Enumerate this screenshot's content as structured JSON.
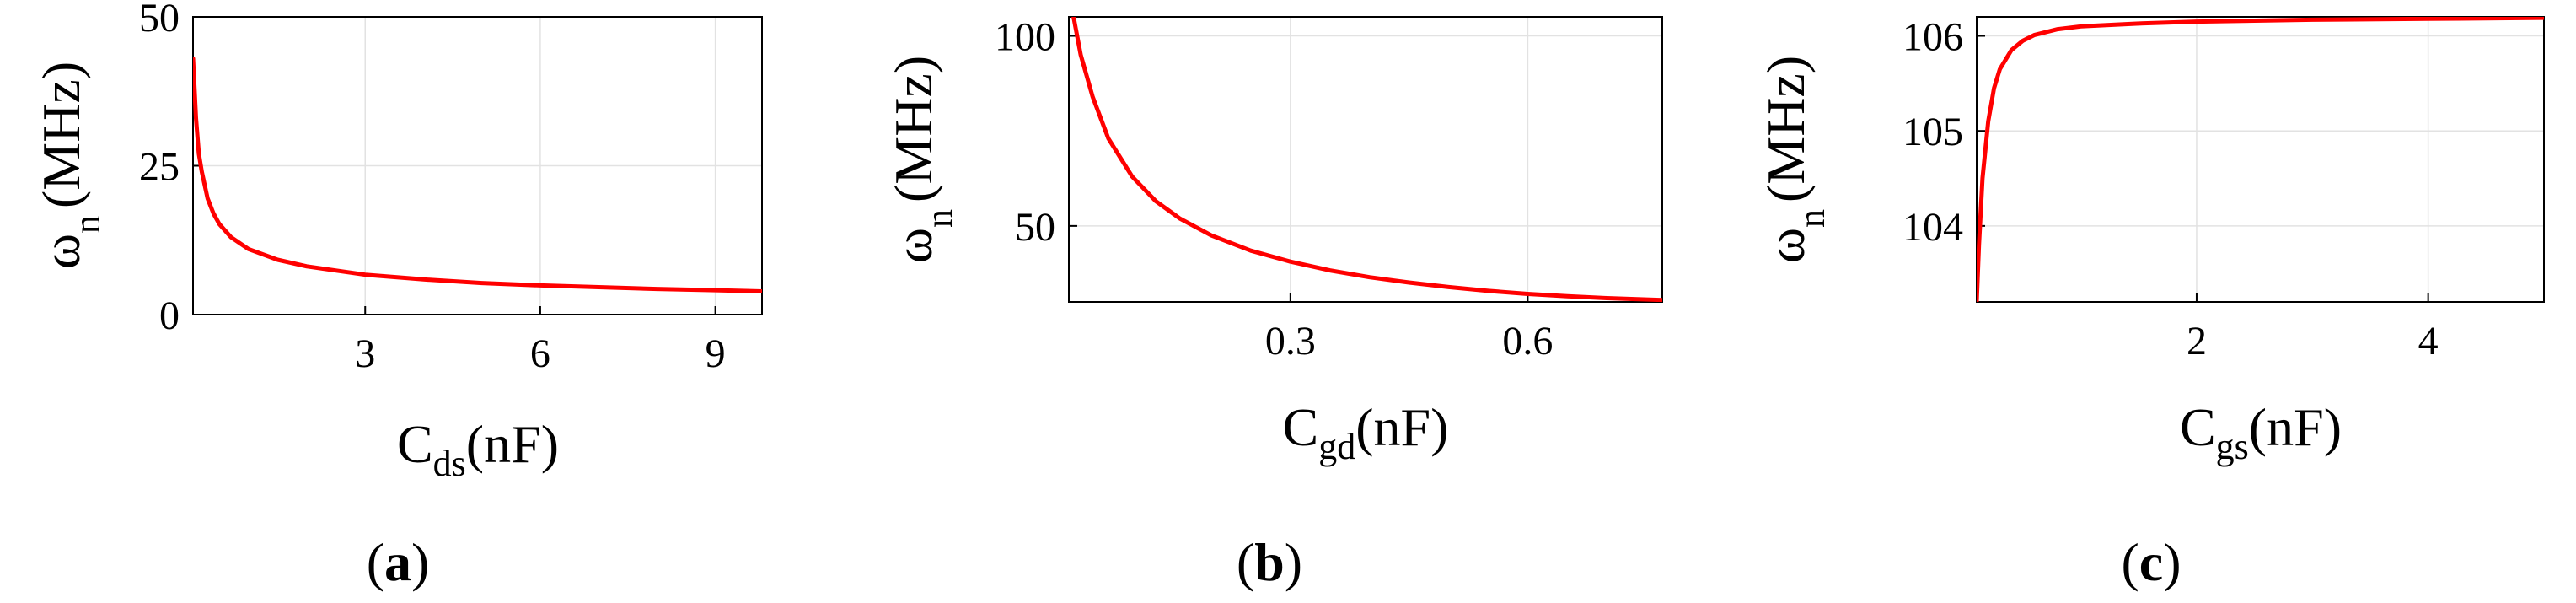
{
  "chart_data": [
    {
      "type": "line",
      "panel_label": {
        "open": "(",
        "letter": "a",
        "close": ")"
      },
      "xlabel": {
        "main": "C",
        "sub": "ds",
        "unit": "(nF)"
      },
      "ylabel": {
        "main": "ω",
        "sub": "n",
        "unit": "(MHz)"
      },
      "xlim": [
        0.05,
        9.8
      ],
      "ylim": [
        0,
        50
      ],
      "xticks": [
        3,
        6,
        9
      ],
      "yticks": [
        0,
        25,
        50
      ],
      "grid": true,
      "series": [
        {
          "color": "#ff0000",
          "x": [
            0.05,
            0.1,
            0.15,
            0.2,
            0.3,
            0.4,
            0.5,
            0.7,
            1,
            1.5,
            2,
            3,
            4,
            5,
            6,
            7,
            8,
            9,
            9.8
          ],
          "y": [
            43,
            33,
            27,
            24,
            19.5,
            17,
            15.2,
            13,
            11,
            9.2,
            8.1,
            6.7,
            5.9,
            5.3,
            4.9,
            4.6,
            4.3,
            4.1,
            3.9
          ]
        }
      ]
    },
    {
      "type": "line",
      "panel_label": {
        "open": "(",
        "letter": "b",
        "close": ")"
      },
      "xlabel": {
        "main": "C",
        "sub": "gd",
        "unit": "(nF)"
      },
      "ylabel": {
        "main": "ω",
        "sub": "n",
        "unit": "(MHz)"
      },
      "xlim": [
        0.02,
        0.77
      ],
      "ylim": [
        30,
        105
      ],
      "xticks": [
        0.3,
        0.6
      ],
      "yticks": [
        50,
        100
      ],
      "grid": true,
      "series": [
        {
          "color": "#ff0000",
          "x": [
            0.026,
            0.035,
            0.05,
            0.07,
            0.1,
            0.13,
            0.16,
            0.2,
            0.25,
            0.3,
            0.35,
            0.4,
            0.45,
            0.5,
            0.55,
            0.6,
            0.65,
            0.7,
            0.77
          ],
          "y": [
            105,
            95,
            84,
            73,
            63,
            56.5,
            52,
            47.5,
            43.5,
            40.6,
            38.3,
            36.5,
            35.1,
            33.9,
            32.9,
            32.1,
            31.5,
            31,
            30.5
          ]
        }
      ]
    },
    {
      "type": "line",
      "panel_label": {
        "open": "(",
        "letter": "c",
        "close": ")"
      },
      "xlabel": {
        "main": "C",
        "sub": "gs",
        "unit": "(nF)"
      },
      "ylabel": {
        "main": "ω",
        "sub": "n",
        "unit": "(MHz)"
      },
      "xlim": [
        0.1,
        5
      ],
      "ylim": [
        103.2,
        106.2
      ],
      "xticks": [
        2,
        4
      ],
      "yticks": [
        104,
        105,
        106
      ],
      "grid": true,
      "series": [
        {
          "color": "#ff0000",
          "x": [
            0.1,
            0.12,
            0.15,
            0.2,
            0.25,
            0.3,
            0.4,
            0.5,
            0.6,
            0.8,
            1,
            1.5,
            2,
            2.5,
            3,
            4,
            5
          ],
          "y": [
            103.2,
            103.8,
            104.5,
            105.1,
            105.45,
            105.65,
            105.85,
            105.95,
            106.01,
            106.07,
            106.1,
            106.13,
            106.15,
            106.16,
            106.17,
            106.18,
            106.19
          ]
        }
      ]
    }
  ]
}
